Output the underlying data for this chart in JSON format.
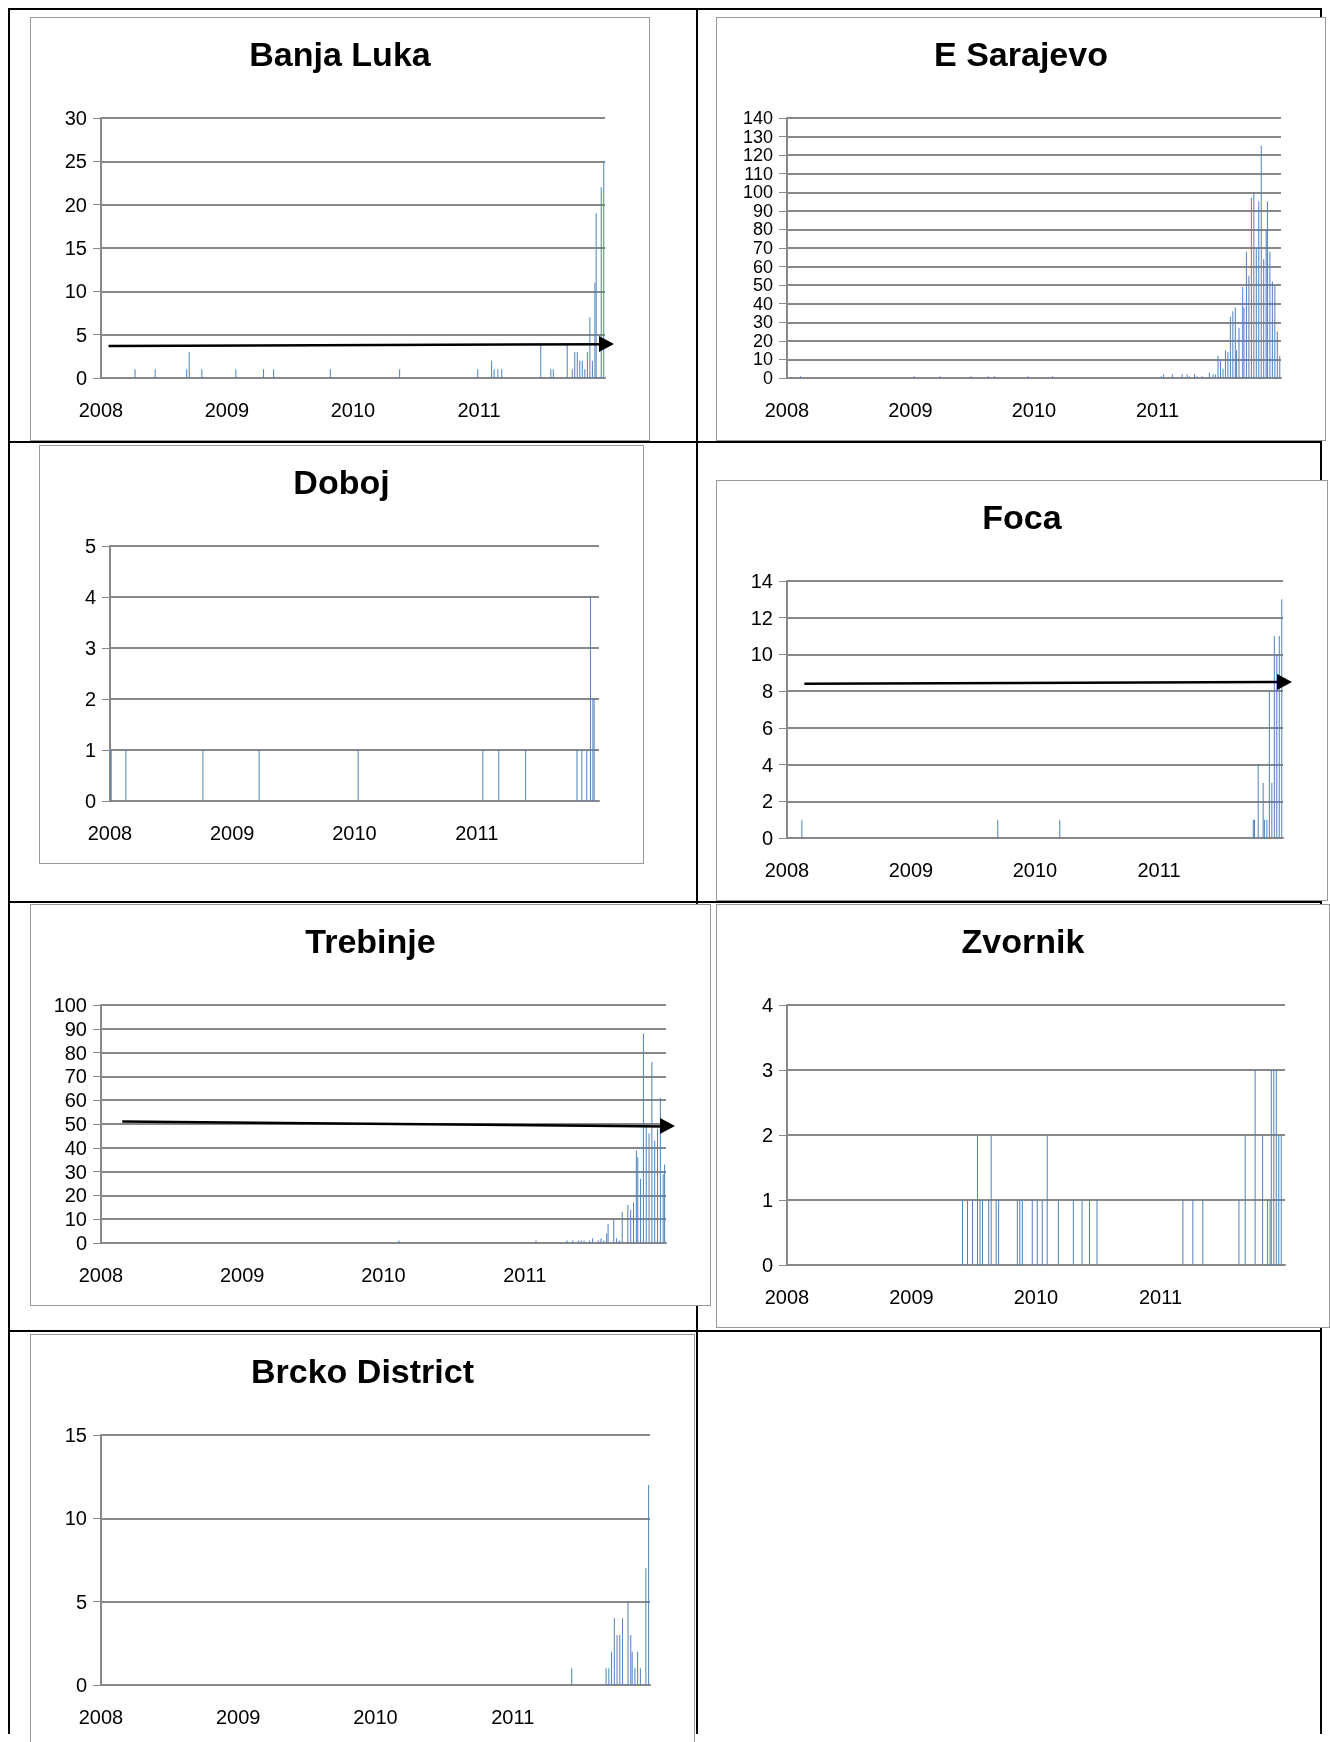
{
  "chart_data": [
    {
      "type": "bar",
      "title": "Banja Luka",
      "xlim": [
        2008,
        2012
      ],
      "xticks": [
        2008,
        2009,
        2010,
        2011
      ],
      "ylim": [
        0,
        30
      ],
      "yticks": [
        0,
        5,
        10,
        15,
        20,
        25,
        30
      ],
      "grid": "y",
      "series": [
        {
          "type": "bar",
          "color": "#4f81bd",
          "x": [
            2008.27,
            2008.43,
            2008.68,
            2008.7,
            2008.8,
            2009.07,
            2009.29,
            2009.37,
            2009.82,
            2010.37,
            2010.99,
            2011.1,
            2011.12,
            2011.15,
            2011.18,
            2011.49,
            2011.57,
            2011.59,
            2011.7,
            2011.74,
            2011.76,
            2011.78,
            2011.8,
            2011.82,
            2011.84,
            2011.86,
            2011.88,
            2011.9,
            2011.92,
            2011.93,
            2011.97,
            2011.99
          ],
          "values": [
            1,
            1,
            1,
            3,
            1,
            1,
            1,
            1,
            1,
            1,
            1,
            2,
            1,
            1,
            1,
            4,
            1,
            1,
            4,
            1,
            3,
            3,
            2,
            2,
            1,
            3,
            7,
            2,
            11,
            19,
            22,
            25
          ]
        },
        {
          "type": "line",
          "color": "#000000",
          "x": [
            2008.06,
            2012
          ],
          "values": [
            3.7,
            3.9
          ]
        }
      ]
    },
    {
      "type": "bar",
      "title": "E Sarajevo",
      "xlim": [
        2008,
        2012
      ],
      "xticks": [
        2008,
        2009,
        2010,
        2011
      ],
      "ylim": [
        0,
        140
      ],
      "yticks": [
        0,
        10,
        20,
        30,
        40,
        50,
        60,
        70,
        80,
        90,
        100,
        110,
        120,
        130,
        140
      ],
      "grid": "y",
      "series": [
        {
          "type": "bar",
          "color": "#4f81bd",
          "x": [
            2008.11,
            2009.03,
            2009.24,
            2009.49,
            2009.63,
            2009.68,
            2009.95,
            2010.15,
            2011.03,
            2011.05,
            2011.12,
            2011.2,
            2011.24,
            2011.26,
            2011.3,
            2011.32,
            2011.36,
            2011.42,
            2011.45,
            2011.47,
            2011.49,
            2011.51,
            2011.53,
            2011.55,
            2011.57,
            2011.59,
            2011.61,
            2011.63,
            2011.64,
            2011.66,
            2011.69,
            2011.7,
            2011.72,
            2011.74,
            2011.76,
            2011.78,
            2011.8,
            2011.82,
            2011.84,
            2011.86,
            2011.88,
            2011.89,
            2011.91,
            2011.93,
            2011.95,
            2011.97,
            2011.99
          ],
          "values": [
            1,
            1,
            1,
            1,
            1,
            1,
            1,
            1,
            1,
            2,
            2,
            2,
            2,
            1,
            2,
            1,
            1,
            3,
            2,
            2,
            12,
            9,
            5,
            15,
            14,
            33,
            36,
            38,
            15,
            27,
            49,
            38,
            68,
            55,
            97,
            100,
            70,
            95,
            125,
            64,
            80,
            95,
            68,
            52,
            50,
            25,
            12
          ]
        }
      ]
    },
    {
      "type": "bar",
      "title": "Doboj",
      "xlim": [
        2008,
        2012
      ],
      "xticks": [
        2008,
        2009,
        2010,
        2011
      ],
      "ylim": [
        0,
        5
      ],
      "yticks": [
        0,
        1,
        2,
        3,
        4,
        5
      ],
      "grid": "y",
      "series": [
        {
          "type": "bar",
          "color": "#4f81bd",
          "x": [
            2008.01,
            2008.13,
            2008.76,
            2009.22,
            2010.03,
            2011.05,
            2011.18,
            2011.4,
            2011.82,
            2011.86,
            2011.9,
            2011.93,
            2011.95,
            2011.96
          ],
          "values": [
            1,
            1,
            1,
            1,
            1,
            1,
            1,
            1,
            1,
            1,
            1,
            4,
            2,
            2
          ]
        }
      ]
    },
    {
      "type": "bar",
      "title": "Foca",
      "xlim": [
        2008,
        2012
      ],
      "xticks": [
        2008,
        2009,
        2010,
        2011
      ],
      "ylim": [
        0,
        14
      ],
      "yticks": [
        0,
        2,
        4,
        6,
        8,
        10,
        12,
        14
      ],
      "grid": "y",
      "series": [
        {
          "type": "bar",
          "color": "#4f81bd",
          "x": [
            2008.12,
            2009.7,
            2010.2,
            2011.76,
            2011.77,
            2011.8,
            2011.84,
            2011.85,
            2011.87,
            2011.89,
            2011.91,
            2011.93,
            2011.95,
            2011.97,
            2011.99
          ],
          "values": [
            1,
            1,
            1,
            1,
            1,
            4,
            3,
            1,
            1,
            8,
            3,
            11,
            10,
            11,
            13
          ]
        },
        {
          "type": "line",
          "color": "#000000",
          "x": [
            2008.14,
            2012
          ],
          "values": [
            8.4,
            8.5
          ]
        }
      ]
    },
    {
      "type": "bar",
      "title": "Trebinje",
      "xlim": [
        2008,
        2012
      ],
      "xticks": [
        2008,
        2009,
        2010,
        2011
      ],
      "ylim": [
        0,
        100
      ],
      "yticks": [
        0,
        10,
        20,
        30,
        40,
        50,
        60,
        70,
        80,
        90,
        100
      ],
      "grid": "y",
      "series": [
        {
          "type": "bar",
          "color": "#4f81bd",
          "x": [
            2010.11,
            2011.08,
            2011.3,
            2011.34,
            2011.38,
            2011.4,
            2011.42,
            2011.46,
            2011.48,
            2011.52,
            2011.54,
            2011.56,
            2011.58,
            2011.59,
            2011.63,
            2011.65,
            2011.67,
            2011.69,
            2011.73,
            2011.75,
            2011.77,
            2011.79,
            2011.8,
            2011.82,
            2011.84,
            2011.86,
            2011.88,
            2011.9,
            2011.92,
            2011.94,
            2011.96,
            2011.98,
            2011.99
          ],
          "values": [
            1,
            1,
            1,
            1,
            1,
            1,
            1,
            1,
            2,
            1,
            2,
            1,
            4,
            8,
            10,
            2,
            1,
            13,
            16,
            14,
            17,
            39,
            36,
            27,
            88,
            50,
            46,
            76,
            43,
            48,
            61,
            29,
            33
          ]
        },
        {
          "type": "line",
          "color": "#000000",
          "x": [
            2008.15,
            2012
          ],
          "values": [
            51,
            49
          ]
        }
      ]
    },
    {
      "type": "bar",
      "title": "Zvornik",
      "xlim": [
        2008,
        2012
      ],
      "xticks": [
        2008,
        2009,
        2010,
        2011
      ],
      "ylim": [
        0,
        4
      ],
      "yticks": [
        0,
        1,
        2,
        3,
        4
      ],
      "grid": "y",
      "series": [
        {
          "type": "bar",
          "color": "#4f81bd",
          "x": [
            2009.41,
            2009.45,
            2009.49,
            2009.53,
            2009.55,
            2009.57,
            2009.62,
            2009.64,
            2009.68,
            2009.7,
            2009.85,
            2009.87,
            2009.89,
            2009.97,
            2010.01,
            2010.05,
            2010.09,
            2010.18,
            2010.3,
            2010.37,
            2010.43,
            2010.49,
            2011.18,
            2011.26,
            2011.34,
            2011.63,
            2011.68,
            2011.76,
            2011.82,
            2011.86,
            2011.88,
            2011.89,
            2011.91,
            2011.93,
            2011.95,
            2011.97
          ],
          "values": [
            1,
            1,
            1,
            2,
            1,
            1,
            1,
            2,
            1,
            1,
            1,
            1,
            1,
            1,
            1,
            1,
            2,
            1,
            1,
            1,
            1,
            1,
            1,
            1,
            1,
            1,
            2,
            3,
            2,
            1,
            1,
            3,
            3,
            3,
            2,
            2
          ]
        }
      ]
    },
    {
      "type": "bar",
      "title": "Brcko District",
      "xlim": [
        2008,
        2012
      ],
      "xticks": [
        2008,
        2009,
        2010,
        2011
      ],
      "ylim": [
        0,
        15
      ],
      "yticks": [
        0,
        5,
        10,
        15
      ],
      "grid": "y",
      "series": [
        {
          "type": "bar",
          "color": "#4f81bd",
          "x": [
            2011.43,
            2011.68,
            2011.7,
            2011.72,
            2011.74,
            2011.76,
            2011.78,
            2011.8,
            2011.84,
            2011.86,
            2011.87,
            2011.89,
            2011.91,
            2011.93,
            2011.97,
            2011.99
          ],
          "values": [
            1,
            1,
            1,
            2,
            4,
            3,
            3,
            4,
            5,
            3,
            2,
            1,
            2,
            1,
            7,
            12
          ]
        }
      ]
    }
  ]
}
